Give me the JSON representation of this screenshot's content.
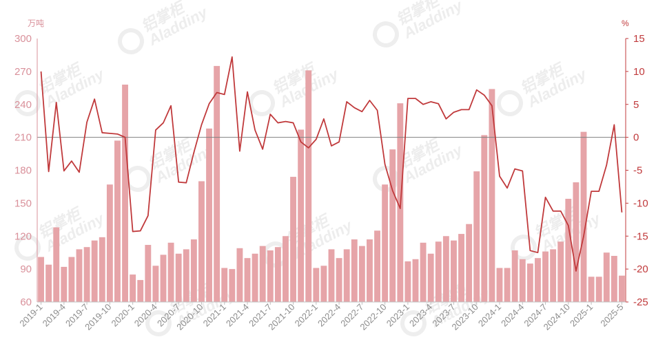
{
  "chart_data": {
    "type": "bar+line",
    "left_axis": {
      "unit": "万吨",
      "ylim": [
        60,
        300
      ],
      "ticks": [
        60,
        90,
        120,
        150,
        180,
        210,
        240,
        270,
        300
      ]
    },
    "right_axis": {
      "unit": "%",
      "ylim": [
        -25,
        15
      ],
      "ticks": [
        -25,
        -20,
        -15,
        -10,
        -5,
        0,
        5,
        10,
        15
      ]
    },
    "x": [
      "2019-1",
      "2019-2",
      "2019-3",
      "2019-4",
      "2019-5",
      "2019-6",
      "2019-7",
      "2019-8",
      "2019-9",
      "2019-10",
      "2019-11",
      "2019-12",
      "2020-1",
      "2020-2",
      "2020-3",
      "2020-4",
      "2020-5",
      "2020-6",
      "2020-7",
      "2020-8",
      "2020-9",
      "2020-10",
      "2020-11",
      "2020-12",
      "2021-1",
      "2021-2",
      "2021-3",
      "2021-4",
      "2021-5",
      "2021-6",
      "2021-7",
      "2021-8",
      "2021-9",
      "2021-10",
      "2021-11",
      "2021-12",
      "2022-1",
      "2022-2",
      "2022-3",
      "2022-4",
      "2022-5",
      "2022-6",
      "2022-7",
      "2022-8",
      "2022-9",
      "2022-10",
      "2022-11",
      "2022-12",
      "2023-1",
      "2023-2",
      "2023-3",
      "2023-4",
      "2023-5",
      "2023-6",
      "2023-7",
      "2023-8",
      "2023-9",
      "2023-10",
      "2023-11",
      "2023-12",
      "2024-1",
      "2024-2",
      "2024-3",
      "2024-4",
      "2024-5",
      "2024-6",
      "2024-7",
      "2024-8",
      "2024-9",
      "2024-10",
      "2024-11",
      "2024-12",
      "2025-1",
      "2025-2",
      "2025-3",
      "2025-4",
      "2025-5"
    ],
    "x_tick_labels": [
      "2019-1",
      "2019-4",
      "2019-7",
      "2019-10",
      "2020-1",
      "2020-4",
      "2020-7",
      "2020-10",
      "2021-1",
      "2021-4",
      "2021-7",
      "2021-10",
      "2022-1",
      "2022-4",
      "2022-7",
      "2022-10",
      "2023-1",
      "2023-4",
      "2023-7",
      "2023-10",
      "2024-1",
      "2024-4",
      "2024-7",
      "2024-10",
      "2025-1",
      "2025-5"
    ],
    "series": [
      {
        "type": "bar",
        "axis": "left",
        "color": "#e6a4a8",
        "values": [
          101,
          94,
          128,
          92,
          101,
          108,
          110,
          116,
          119,
          167,
          207,
          258,
          85,
          80,
          112,
          93,
          103,
          114,
          104,
          108,
          117,
          170,
          218,
          275,
          91,
          90,
          109,
          100,
          104,
          111,
          107,
          110,
          120,
          174,
          217,
          271,
          91,
          93,
          108,
          100,
          108,
          117,
          111,
          117,
          125,
          167,
          199,
          241,
          97,
          99,
          114,
          104,
          115,
          120,
          116,
          122,
          131,
          179,
          212,
          254,
          91,
          91,
          107,
          99,
          95,
          100,
          106,
          108,
          115,
          154,
          169,
          215,
          83,
          83,
          105,
          102,
          84
        ]
      },
      {
        "type": "line",
        "axis": "right",
        "color": "#c0393b",
        "values": [
          10,
          -5.2,
          5.3,
          -5.1,
          -3.6,
          -5.3,
          2.3,
          5.8,
          0.7,
          0.6,
          0.5,
          0,
          -14.3,
          -14.2,
          -11.9,
          1.1,
          2.2,
          4.8,
          -6.8,
          -6.9,
          -2.3,
          1.9,
          5.1,
          6.8,
          6.5,
          12.2,
          -2.1,
          6.9,
          1.1,
          -1.8,
          3.5,
          2.2,
          2.4,
          2.2,
          -0.7,
          -1.6,
          -0.3,
          2.8,
          -1.3,
          -0.7,
          5.4,
          4.5,
          3.9,
          5.6,
          4.1,
          -4.1,
          -8.1,
          -10.8,
          5.9,
          5.9,
          5,
          5.4,
          5.1,
          2.8,
          3.8,
          4.2,
          4.2,
          7.2,
          6.4,
          4.8,
          -5.9,
          -7.7,
          -4.8,
          -5.1,
          -17.2,
          -17.5,
          -9.1,
          -11.2,
          -11.2,
          -13.4,
          -20.3,
          -15,
          -8.2,
          -8.2,
          -4.2,
          1.9,
          -11.4
        ]
      }
    ],
    "watermark": {
      "logo_text": "铝掌柜",
      "logo_subtext": "Aladdiny"
    }
  }
}
